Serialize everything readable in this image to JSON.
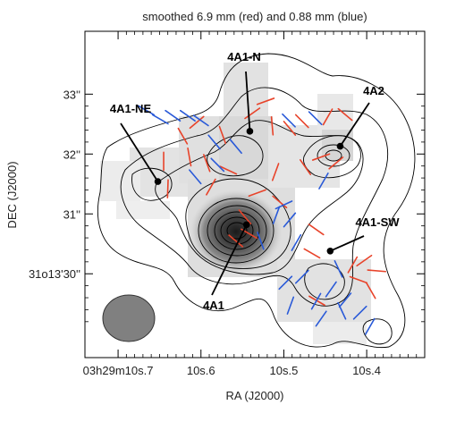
{
  "chart_data": {
    "type": "scatter",
    "title": "smoothed 6.9 mm (red) and 0.88 mm (blue)",
    "xlabel": "RA (J2000)",
    "ylabel": "DEC (J2000)",
    "x_ticks": [
      {
        "value": 10.7,
        "label": "03h29m10s.7"
      },
      {
        "value": 10.6,
        "label": "10s.6"
      },
      {
        "value": 10.5,
        "label": "10s.5"
      },
      {
        "value": 10.4,
        "label": "10s.4"
      }
    ],
    "y_ticks": [
      {
        "value": 33.0,
        "label": "33''"
      },
      {
        "value": 32.0,
        "label": "32''"
      },
      {
        "value": 31.0,
        "label": "31''"
      },
      {
        "value": 30.0,
        "label": "31o13'30''"
      }
    ],
    "xlim": [
      10.74,
      10.33
    ],
    "ylim": [
      28.6,
      34.05
    ],
    "sources": [
      {
        "name": "4A1",
        "ra": 10.545,
        "dec": 30.82
      },
      {
        "name": "4A1-N",
        "ra": 10.541,
        "dec": 32.38
      },
      {
        "name": "4A2",
        "ra": 10.432,
        "dec": 32.13
      },
      {
        "name": "4A1-NE",
        "ra": 10.652,
        "dec": 31.54
      },
      {
        "name": "4A1-SW",
        "ra": 10.444,
        "dec": 30.38
      }
    ],
    "series": [
      {
        "color": "#e8432a",
        "values": [
          [
            10.645,
            31.88,
            90
          ],
          [
            10.64,
            31.42,
            88
          ],
          [
            10.614,
            31.95,
            100
          ],
          [
            10.605,
            32.53,
            40
          ],
          [
            10.593,
            31.85,
            110
          ],
          [
            10.588,
            31.45,
            60
          ],
          [
            10.574,
            32.32,
            110
          ],
          [
            10.567,
            31.73,
            155
          ],
          [
            10.558,
            30.55,
            140
          ],
          [
            10.547,
            30.95,
            130
          ],
          [
            10.542,
            30.67,
            150
          ],
          [
            10.538,
            32.68,
            35
          ],
          [
            10.532,
            31.35,
            20
          ],
          [
            10.522,
            32.88,
            20
          ],
          [
            10.514,
            32.47,
            95
          ],
          [
            10.51,
            31.7,
            70
          ],
          [
            10.505,
            31.2,
            140
          ],
          [
            10.493,
            32.43,
            130
          ],
          [
            10.478,
            32.55,
            135
          ],
          [
            10.474,
            31.78,
            125
          ],
          [
            10.466,
            30.34,
            150
          ],
          [
            10.461,
            30.74,
            145
          ],
          [
            10.455,
            31.95,
            20
          ],
          [
            10.447,
            32.62,
            60
          ],
          [
            10.437,
            31.85,
            40
          ],
          [
            10.426,
            32.66,
            140
          ],
          [
            10.417,
            30.15,
            60
          ],
          [
            10.41,
            29.9,
            160
          ],
          [
            10.403,
            30.22,
            35
          ],
          [
            10.395,
            29.72,
            120
          ],
          [
            10.388,
            30.05,
            175
          ],
          [
            10.46,
            29.55,
            150
          ],
          [
            10.622,
            32.3,
            120
          ]
        ]
      },
      {
        "color": "#2a5ad8",
        "values": [
          [
            10.666,
            32.73,
            150
          ],
          [
            10.649,
            32.58,
            150
          ],
          [
            10.634,
            32.64,
            145
          ],
          [
            10.616,
            32.64,
            145
          ],
          [
            10.6,
            32.56,
            145
          ],
          [
            10.607,
            31.62,
            130
          ],
          [
            10.584,
            32.2,
            130
          ],
          [
            10.558,
            32.13,
            130
          ],
          [
            10.494,
            32.56,
            135
          ],
          [
            10.462,
            32.6,
            135
          ],
          [
            10.452,
            31.55,
            60
          ],
          [
            10.509,
            30.98,
            70
          ],
          [
            10.493,
            30.9,
            50
          ],
          [
            10.485,
            30.52,
            60
          ],
          [
            10.434,
            30.08,
            115
          ],
          [
            10.426,
            29.56,
            50
          ],
          [
            10.43,
            29.38,
            115
          ],
          [
            10.443,
            29.74,
            55
          ],
          [
            10.455,
            29.25,
            55
          ],
          [
            10.461,
            29.54,
            60
          ],
          [
            10.478,
            29.95,
            45
          ],
          [
            10.498,
            29.85,
            45
          ],
          [
            10.492,
            29.47,
            70
          ],
          [
            10.408,
            29.35,
            45
          ],
          [
            10.396,
            29.12,
            60
          ],
          [
            10.5,
            31.15,
            25
          ],
          [
            10.58,
            31.82,
            135
          ],
          [
            10.528,
            30.55,
            110
          ]
        ]
      }
    ],
    "legend": "none",
    "grid": false
  }
}
